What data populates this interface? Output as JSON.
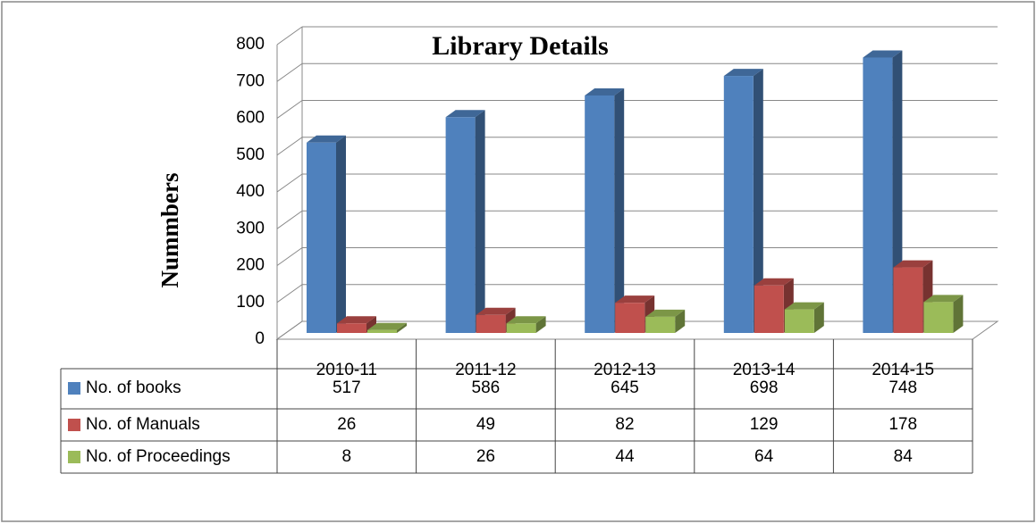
{
  "chart_data": {
    "type": "bar3d",
    "title": "Library Details",
    "ylabel": "Nummbers",
    "categories": [
      "2010-11",
      "2011-12",
      "2012-13",
      "2013-14",
      "2014-15"
    ],
    "series": [
      {
        "name": "No. of books",
        "color": "#4f81bd",
        "values": [
          517,
          586,
          645,
          698,
          748
        ]
      },
      {
        "name": "No. of Manuals",
        "color": "#c0504d",
        "values": [
          26,
          49,
          82,
          129,
          178
        ]
      },
      {
        "name": "No. of Proceedings",
        "color": "#9bbb59",
        "values": [
          8,
          26,
          44,
          64,
          84
        ]
      }
    ],
    "ylim": [
      0,
      800
    ],
    "yticks": [
      0,
      100,
      200,
      300,
      400,
      500,
      600,
      700,
      800
    ],
    "grid": true
  }
}
